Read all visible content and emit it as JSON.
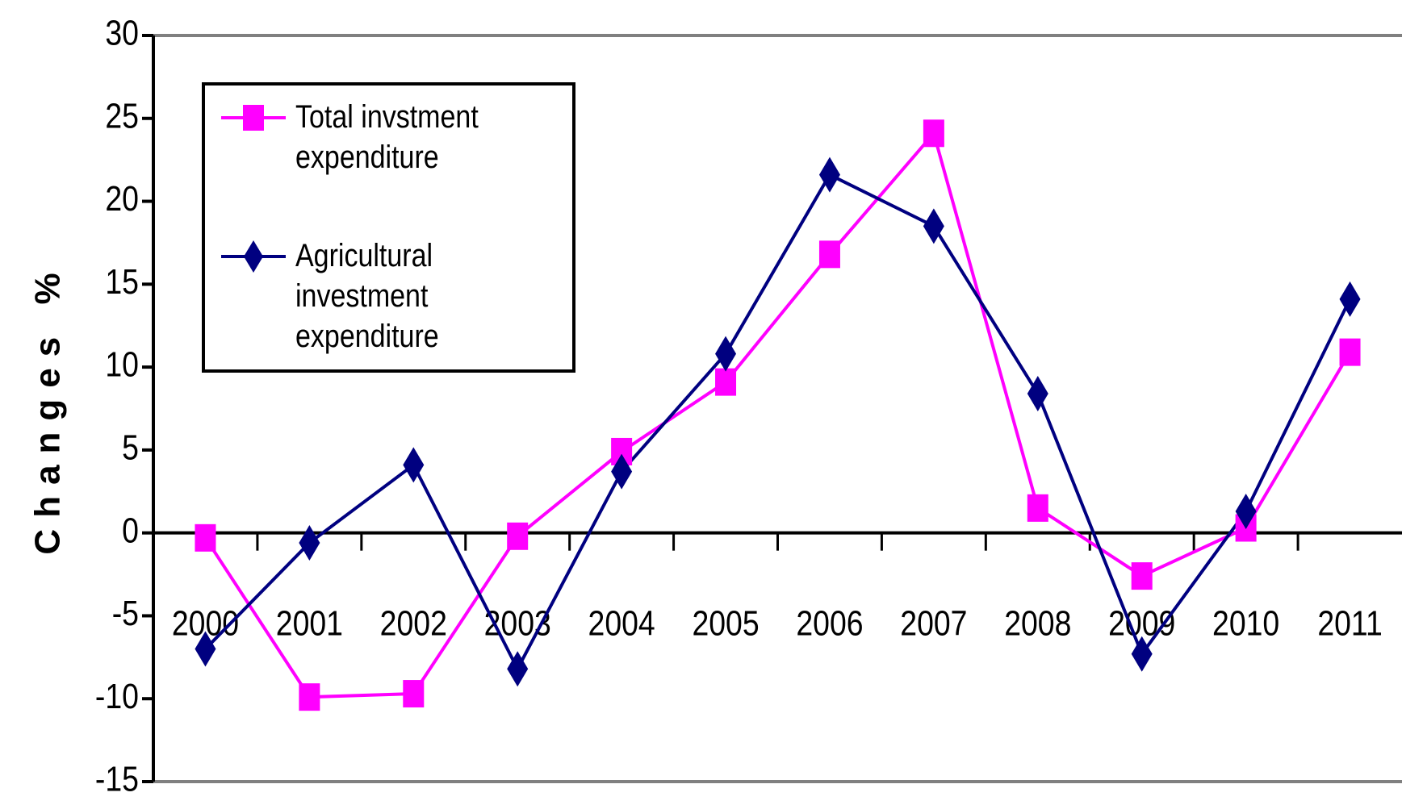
{
  "chart_data": {
    "type": "line",
    "ylabel": "Changes %",
    "categories": [
      "2000",
      "2001",
      "2002",
      "2003",
      "2004",
      "2005",
      "2006",
      "2007",
      "2008",
      "2009",
      "2010",
      "2011"
    ],
    "series": [
      {
        "name": "Total invstment expenditure",
        "color": "#ff00ff",
        "marker": "square",
        "values": [
          -0.3,
          -9.9,
          -9.7,
          -0.2,
          4.9,
          9.1,
          16.8,
          24.1,
          1.5,
          -2.6,
          0.3,
          10.9
        ]
      },
      {
        "name": "Agricultural investment expenditure",
        "color": "#000080",
        "marker": "diamond",
        "values": [
          -7.0,
          -0.6,
          4.1,
          -8.2,
          3.7,
          10.8,
          21.6,
          18.5,
          8.4,
          -7.3,
          1.3,
          14.1
        ]
      }
    ],
    "ylim": [
      -15,
      30
    ],
    "yticks": [
      -15,
      -10,
      -5,
      0,
      5,
      10,
      15,
      20,
      25,
      30
    ],
    "grid": false,
    "legend": "upper left"
  }
}
